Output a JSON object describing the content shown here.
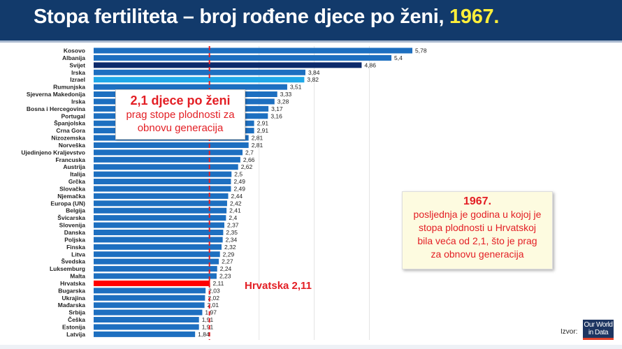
{
  "title": {
    "main": "Stopa fertiliteta – broj rođene djece po ženi,",
    "year": "1967."
  },
  "chart_data": {
    "type": "bar",
    "orientation": "horizontal",
    "categories": [
      "Kosovo",
      "Albanija",
      "Svijet",
      "Irska",
      "Izrael",
      "Rumunjska",
      "Sjeverna Makedonija",
      "Irska",
      "Bosna i Hercegovina",
      "Portugal",
      "Španjolska",
      "Crna Gora",
      "Nizozemska",
      "Norveška",
      "Ujedinjeno Kraljevstvo",
      "Francuska",
      "Austrija",
      "Italija",
      "Grčka",
      "Slovačka",
      "Njemačka",
      "Europa (UN)",
      "Belgija",
      "Švicarska",
      "Slovenija",
      "Danska",
      "Poljska",
      "Finska",
      "Litva",
      "Švedska",
      "Luksemburg",
      "Malta",
      "Hrvatska",
      "Bugarska",
      "Ukrajina",
      "Mađarska",
      "Srbija",
      "Češka",
      "Estonija",
      "Latvija"
    ],
    "values": [
      5.78,
      5.4,
      4.86,
      3.84,
      3.82,
      3.51,
      3.33,
      3.28,
      3.17,
      3.16,
      2.91,
      2.91,
      2.81,
      2.81,
      2.7,
      2.66,
      2.62,
      2.5,
      2.49,
      2.49,
      2.44,
      2.42,
      2.41,
      2.4,
      2.37,
      2.35,
      2.34,
      2.32,
      2.29,
      2.27,
      2.24,
      2.23,
      2.11,
      2.03,
      2.02,
      2.01,
      1.97,
      1.91,
      1.91,
      1.84
    ],
    "data_labels": [
      "5,78",
      "5,4",
      "4,86",
      "3,84",
      "3,82",
      "3,51",
      "3,33",
      "3,28",
      "3,17",
      "3,16",
      "2,91",
      "2,91",
      "2,81",
      "2,81",
      "2,7",
      "2,66",
      "2,62",
      "2,5",
      "2,49",
      "2,49",
      "2,44",
      "2,42",
      "2,41",
      "2,4",
      "2,37",
      "2,35",
      "2,34",
      "2,32",
      "2,29",
      "2,27",
      "2,24",
      "2,23",
      "2,11",
      "2,03",
      "2,02",
      "2,01",
      "1,97",
      "1,91",
      "1,91",
      "1,84"
    ],
    "highlight": {
      "Svijet": "#0c2a6b",
      "Izrael": "#1fa8e8",
      "Hrvatska": "#ff0000"
    },
    "bar_color": "#1d6fc0",
    "reference_line": {
      "value": 2.1,
      "color": "#e31e24",
      "style": "dashed"
    },
    "xlim": [
      0,
      6
    ]
  },
  "annotations": {
    "threshold_heading": "2,1 djece po ženi",
    "threshold_line1": "prag stope plodnosti za",
    "threshold_line2": "obnovu generacija",
    "croatia_label": "Hrvatska 2,11",
    "note_heading": "1967.",
    "note_lines": [
      "posljednja je godina u kojoj je",
      "stopa plodnosti u Hrvatskoj",
      "bila veća od 2,1, što je prag",
      "za obnovu generacija"
    ]
  },
  "source": {
    "label": "Izvor:",
    "logo_text": "Our World in Data"
  }
}
